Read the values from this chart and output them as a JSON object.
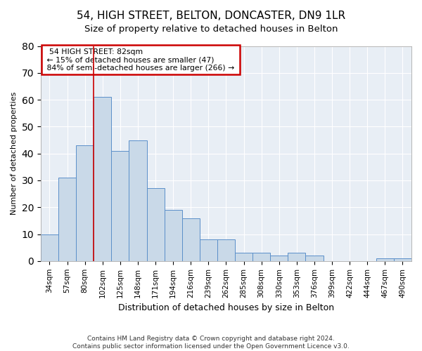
{
  "title": "54, HIGH STREET, BELTON, DONCASTER, DN9 1LR",
  "subtitle": "Size of property relative to detached houses in Belton",
  "xlabel": "Distribution of detached houses by size in Belton",
  "ylabel": "Number of detached properties",
  "bar_labels": [
    "34sqm",
    "57sqm",
    "80sqm",
    "102sqm",
    "125sqm",
    "148sqm",
    "171sqm",
    "194sqm",
    "216sqm",
    "239sqm",
    "262sqm",
    "285sqm",
    "308sqm",
    "330sqm",
    "353sqm",
    "376sqm",
    "399sqm",
    "422sqm",
    "444sqm",
    "467sqm",
    "490sqm"
  ],
  "bar_values": [
    10,
    31,
    43,
    61,
    41,
    45,
    27,
    19,
    16,
    8,
    8,
    3,
    3,
    2,
    3,
    2,
    0,
    0,
    0,
    1,
    1
  ],
  "bar_color": "#c9d9e8",
  "bar_edge_color": "#5b8fc9",
  "ylim": [
    0,
    80
  ],
  "yticks": [
    0,
    10,
    20,
    30,
    40,
    50,
    60,
    70,
    80
  ],
  "vline_x": 2.5,
  "annotation_title": "54 HIGH STREET: 82sqm",
  "annotation_line1": "← 15% of detached houses are smaller (47)",
  "annotation_line2": "84% of semi-detached houses are larger (266) →",
  "footer_line1": "Contains HM Land Registry data © Crown copyright and database right 2024.",
  "footer_line2": "Contains public sector information licensed under the Open Government Licence v3.0.",
  "vline_color": "#cc0000",
  "annotation_box_color": "#cc0000",
  "background_color": "#e8eef5"
}
